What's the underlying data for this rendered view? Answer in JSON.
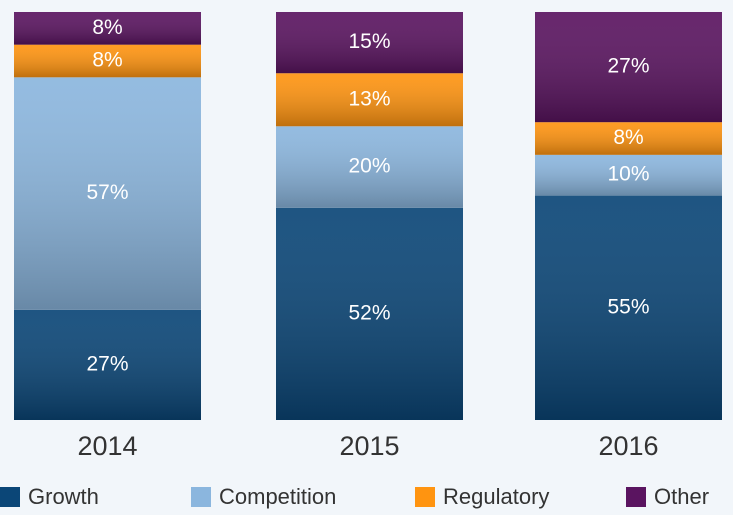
{
  "chart_data": {
    "type": "stacked_bar",
    "categories": [
      "2014",
      "2015",
      "2016"
    ],
    "series": [
      {
        "name": "Growth",
        "color": "#0b4677",
        "values": [
          27,
          52,
          55
        ],
        "value_labels": [
          "27%",
          "52%",
          "55%"
        ]
      },
      {
        "name": "Competition",
        "color": "#8bb6de",
        "values": [
          57,
          20,
          10
        ],
        "value_labels": [
          "57%",
          "20%",
          "10%"
        ]
      },
      {
        "name": "Regulatory",
        "color": "#ff9410",
        "values": [
          8,
          13,
          8
        ],
        "value_labels": [
          "8%",
          "13%",
          "8%"
        ]
      },
      {
        "name": "Other",
        "color": "#5a1460",
        "values": [
          8,
          15,
          27
        ],
        "value_labels": [
          "8%",
          "15%",
          "27%"
        ]
      }
    ],
    "ylim": [
      0,
      100
    ]
  }
}
